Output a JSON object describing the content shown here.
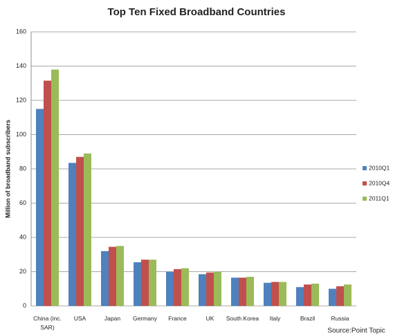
{
  "chart_data": {
    "type": "bar",
    "title": "Top Ten Fixed Broadband Countries",
    "y_label": "Million of broadband subscribers",
    "source": "Source:Point Topic",
    "categories": [
      "China (inc. SAR)",
      "USA",
      "Japan",
      "Germany",
      "France",
      "UK",
      "South Korea",
      "Italy",
      "Brazil",
      "Russia"
    ],
    "series": [
      {
        "name": "2010Q1",
        "color": "#4f81bd",
        "values": [
          115,
          83.5,
          32,
          25.5,
          20,
          18.5,
          16.5,
          13.5,
          11,
          10
        ]
      },
      {
        "name": "2010Q4",
        "color": "#c0504d",
        "values": [
          131.5,
          87,
          34.5,
          27,
          21.5,
          19.5,
          16.5,
          14,
          12.5,
          11.5
        ]
      },
      {
        "name": "2011Q1",
        "color": "#9bbb59",
        "values": [
          138,
          89,
          35,
          27,
          22,
          20,
          17,
          14,
          13,
          12.5
        ]
      }
    ],
    "ylim": [
      0,
      160
    ],
    "yticks": [
      0,
      20,
      40,
      60,
      80,
      100,
      120,
      140,
      160
    ],
    "grid": true,
    "legend": "right"
  }
}
